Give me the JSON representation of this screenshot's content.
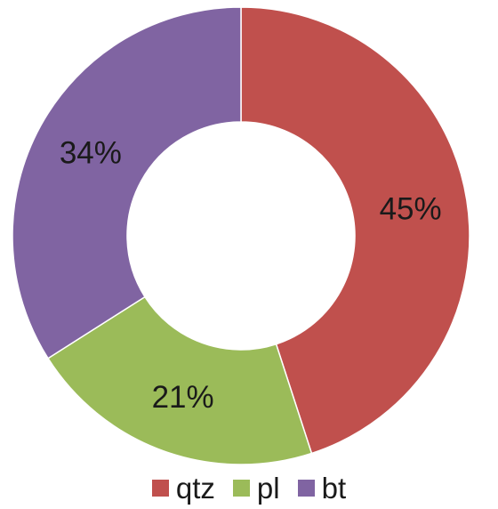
{
  "chart_data": {
    "type": "pie",
    "variant": "donut",
    "categories": [
      "qtz",
      "pl",
      "bt"
    ],
    "values": [
      45,
      21,
      34
    ],
    "data_labels": [
      "45%",
      "21%",
      "34%"
    ],
    "colors": [
      "#c0504d",
      "#9bbb59",
      "#8064a2"
    ],
    "legend_position": "bottom",
    "title": "",
    "start_angle": "12 o'clock",
    "direction": "clockwise"
  }
}
